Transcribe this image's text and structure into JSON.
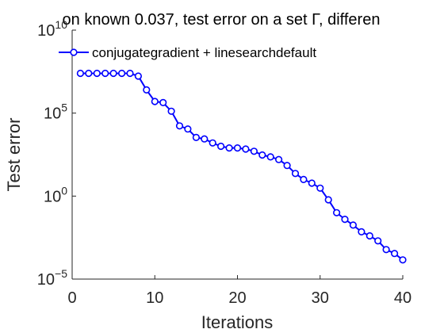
{
  "chart_data": {
    "type": "line",
    "title": "on known 0.037, test error on a set  Γ, differen",
    "xlabel": "Iterations",
    "ylabel": "Test error",
    "xlim": [
      0,
      40
    ],
    "ylim": [
      1e-05,
      10000000000.0
    ],
    "yscale": "log",
    "grid": false,
    "legend_position": "top-left",
    "x_ticks": [
      {
        "value": 0,
        "label": "0"
      },
      {
        "value": 10,
        "label": "10"
      },
      {
        "value": 20,
        "label": "20"
      },
      {
        "value": 30,
        "label": "30"
      },
      {
        "value": 40,
        "label": "40"
      }
    ],
    "y_ticks": [
      {
        "value": 1e-05,
        "base": "10",
        "exp": "−5"
      },
      {
        "value": 1,
        "base": "10",
        "exp": "0"
      },
      {
        "value": 100000.0,
        "base": "10",
        "exp": "5"
      },
      {
        "value": 10000000000.0,
        "base": "10",
        "exp": "10"
      }
    ],
    "series": [
      {
        "name": "conjugategradient + linesearchdefault",
        "color": "#0000ff",
        "marker": "circle",
        "x": [
          1,
          2,
          3,
          4,
          5,
          6,
          7,
          8,
          9,
          10,
          11,
          12,
          13,
          14,
          15,
          16,
          17,
          18,
          19,
          20,
          21,
          22,
          23,
          24,
          25,
          26,
          27,
          28,
          29,
          30,
          31,
          32,
          33,
          34,
          35,
          36,
          37,
          38,
          39,
          40
        ],
        "y": [
          25000000.0,
          25000000.0,
          25000000.0,
          25000000.0,
          25000000.0,
          25000000.0,
          25000000.0,
          17000000.0,
          2500000.0,
          500000.0,
          430000.0,
          130000.0,
          17000.0,
          11000.0,
          3400.0,
          2800.0,
          1600.0,
          1000.0,
          800.0,
          800.0,
          680.0,
          500.0,
          300.0,
          230.0,
          160.0,
          70.0,
          23.0,
          10.0,
          6.0,
          3.0,
          0.6,
          0.1,
          0.04,
          0.018,
          0.007,
          0.004,
          0.002,
          0.0006,
          0.00035,
          0.000144
        ]
      }
    ]
  }
}
